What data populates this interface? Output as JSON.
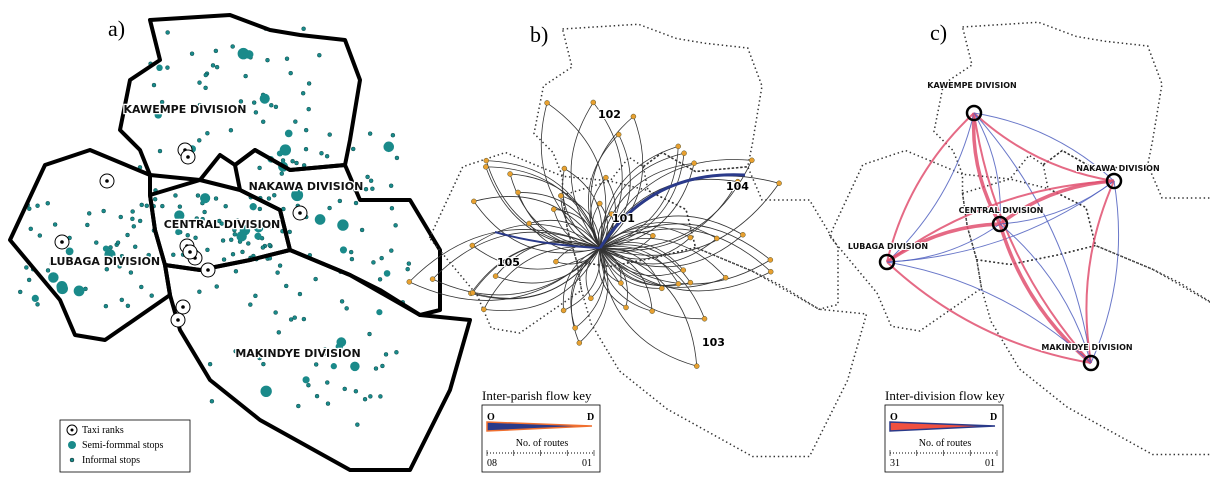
{
  "panels": [
    {
      "label": "a)",
      "divisions": [
        "KAWEMPE DIVISION",
        "NAKAWA DIVISION",
        "CENTRAL DIVISION",
        "LUBAGA DIVISION",
        "MAKINDYE DIVISION"
      ],
      "legend": [
        "Taxi ranks",
        "Semi-formmal stops",
        "Informal stops"
      ]
    },
    {
      "label": "b)",
      "parishes": [
        "102",
        "104",
        "101",
        "105",
        "103"
      ],
      "key": {
        "title": "Inter-parish flow key",
        "origin": "O",
        "destination": "D",
        "axis_label": "No. of routes",
        "max_label": "08",
        "min_label": "01"
      }
    },
    {
      "label": "c)",
      "divisions": [
        "KAWEMPE DIVISION",
        "NAKAWA DIVISION",
        "CENTRAL DIVISION",
        "LUBAGA DIVISION",
        "MAKINDYE DIVISION"
      ],
      "key": {
        "title": "Inter-division flow key",
        "origin": "O",
        "destination": "D",
        "axis_label": "No. of routes",
        "max_label": "31",
        "min_label": "01"
      }
    }
  ]
}
